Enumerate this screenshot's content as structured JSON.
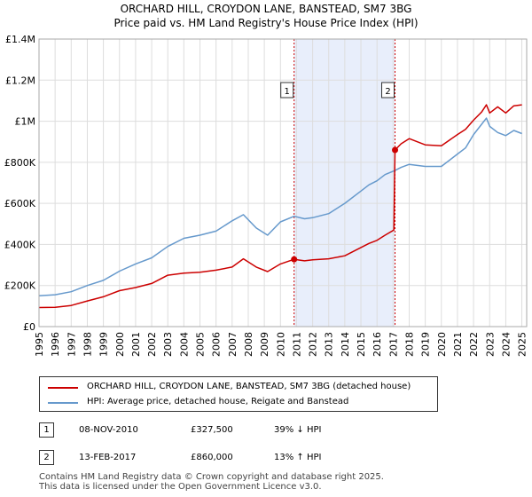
{
  "title": {
    "line1": "ORCHARD HILL, CROYDON LANE, BANSTEAD, SM7 3BG",
    "line2": "Price paid vs. HM Land Registry's House Price Index (HPI)"
  },
  "colors": {
    "property": "#cc0000",
    "hpi": "#6699cc",
    "shade": "#e8eefb",
    "grid": "#dddddd"
  },
  "chart_data": {
    "type": "line",
    "title": "ORCHARD HILL, CROYDON LANE, BANSTEAD, SM7 3BG — Price paid vs. HM Land Registry's House Price Index (HPI)",
    "xlabel": "",
    "ylabel": "",
    "xlim": [
      1995,
      2025.3
    ],
    "ylim": [
      0,
      1400000
    ],
    "y_ticks": [
      {
        "value": 0,
        "label": "£0"
      },
      {
        "value": 200000,
        "label": "£200K"
      },
      {
        "value": 400000,
        "label": "£400K"
      },
      {
        "value": 600000,
        "label": "£600K"
      },
      {
        "value": 800000,
        "label": "£800K"
      },
      {
        "value": 1000000,
        "label": "£1M"
      },
      {
        "value": 1200000,
        "label": "£1.2M"
      },
      {
        "value": 1400000,
        "label": "£1.4M"
      }
    ],
    "x_ticks": [
      "1995",
      "1996",
      "1997",
      "1998",
      "1999",
      "2000",
      "2001",
      "2002",
      "2003",
      "2004",
      "2005",
      "2006",
      "2007",
      "2008",
      "2009",
      "2010",
      "2011",
      "2012",
      "2013",
      "2014",
      "2015",
      "2016",
      "2017",
      "2018",
      "2019",
      "2020",
      "2021",
      "2022",
      "2023",
      "2024",
      "2025"
    ],
    "shaded_range": [
      2010.85,
      2017.12
    ],
    "series": [
      {
        "name": "ORCHARD HILL, CROYDON LANE, BANSTEAD, SM7 3BG (detached house)",
        "color": "#cc0000",
        "x": [
          1995,
          1996,
          1997,
          1998,
          1999,
          2000,
          2001,
          2002,
          2003,
          2004,
          2005,
          2006,
          2007,
          2007.7,
          2008.5,
          2009.2,
          2010,
          2010.85,
          2011.5,
          2012,
          2013,
          2014,
          2015,
          2015.5,
          2016,
          2016.5,
          2017.05,
          2017.12,
          2017.5,
          2018,
          2019,
          2020,
          2021,
          2021.5,
          2022,
          2022.5,
          2022.8,
          2023,
          2023.5,
          2024,
          2024.5,
          2025
        ],
        "values": [
          93000,
          94000,
          103000,
          125000,
          145000,
          175000,
          190000,
          210000,
          250000,
          260000,
          265000,
          275000,
          290000,
          330000,
          290000,
          268000,
          305000,
          327500,
          320000,
          325000,
          330000,
          345000,
          385000,
          405000,
          420000,
          445000,
          470000,
          860000,
          890000,
          915000,
          885000,
          880000,
          935000,
          960000,
          1005000,
          1045000,
          1080000,
          1040000,
          1070000,
          1040000,
          1075000,
          1080000
        ]
      },
      {
        "name": "HPI: Average price, detached house, Reigate and Banstead",
        "color": "#6699cc",
        "x": [
          1995,
          1996,
          1997,
          1998,
          1999,
          2000,
          2001,
          2002,
          2003,
          2004,
          2005,
          2006,
          2007,
          2007.7,
          2008.5,
          2009.2,
          2010,
          2010.85,
          2011.5,
          2012,
          2013,
          2014,
          2015,
          2015.5,
          2016,
          2016.5,
          2017.12,
          2017.5,
          2018,
          2019,
          2020,
          2021,
          2021.5,
          2022,
          2022.5,
          2022.8,
          2023,
          2023.5,
          2024,
          2024.5,
          2025
        ],
        "values": [
          150000,
          155000,
          170000,
          200000,
          225000,
          270000,
          305000,
          335000,
          390000,
          430000,
          445000,
          465000,
          515000,
          545000,
          480000,
          445000,
          510000,
          537000,
          525000,
          530000,
          550000,
          600000,
          660000,
          690000,
          710000,
          740000,
          760000,
          775000,
          790000,
          780000,
          780000,
          840000,
          870000,
          935000,
          985000,
          1015000,
          975000,
          945000,
          930000,
          955000,
          940000
        ]
      }
    ],
    "markers": [
      {
        "label": "1",
        "x": 2010.85,
        "value": 327500
      },
      {
        "label": "2",
        "x": 2017.12,
        "value": 860000
      }
    ]
  },
  "legend": {
    "items": [
      {
        "label": "ORCHARD HILL, CROYDON LANE, BANSTEAD, SM7 3BG (detached house)",
        "color": "#cc0000"
      },
      {
        "label": "HPI: Average price, detached house, Reigate and Banstead",
        "color": "#6699cc"
      }
    ]
  },
  "transactions": [
    {
      "num": "1",
      "date": "08-NOV-2010",
      "price": "£327,500",
      "hpi": "39% ↓ HPI"
    },
    {
      "num": "2",
      "date": "13-FEB-2017",
      "price": "£860,000",
      "hpi": "13% ↑ HPI"
    }
  ],
  "footer": {
    "line1": "Contains HM Land Registry data © Crown copyright and database right 2025.",
    "line2": "This data is licensed under the Open Government Licence v3.0."
  }
}
